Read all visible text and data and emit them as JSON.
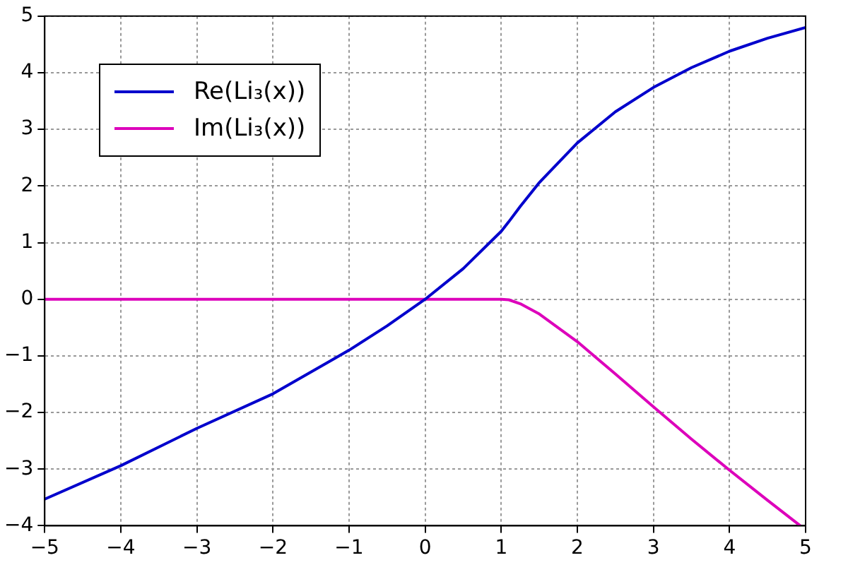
{
  "chart_data": {
    "type": "line",
    "x": [
      -5,
      -4,
      -3,
      -2,
      -1,
      -0.5,
      0,
      0.5,
      1,
      1.1,
      1.25,
      1.5,
      2,
      2.5,
      3,
      3.5,
      4,
      4.5,
      5
    ],
    "series": [
      {
        "name": "Re(Li₃(x))",
        "color": "#0000cc",
        "values": [
          -3.53,
          -2.94,
          -2.28,
          -1.67,
          -0.9,
          -0.47,
          0,
          0.54,
          1.2,
          1.37,
          1.64,
          2.06,
          2.76,
          3.31,
          3.74,
          4.09,
          4.38,
          4.61,
          4.8
        ]
      },
      {
        "name": "Im(Li₃(x))",
        "color": "#dd00bb",
        "x": [
          -5,
          -4,
          -3,
          -2,
          -1,
          0,
          1,
          1.1,
          1.25,
          1.5,
          2,
          2.5,
          3,
          3.5,
          4,
          4.5,
          4.93
        ],
        "values": [
          0,
          0,
          0,
          0,
          0,
          0,
          0,
          -0.01,
          -0.08,
          -0.26,
          -0.75,
          -1.32,
          -1.9,
          -2.47,
          -3.02,
          -3.55,
          -4
        ]
      }
    ],
    "xlim": [
      -5,
      5
    ],
    "xticks": [
      {
        "value": -5,
        "label": "−5"
      },
      {
        "value": -4,
        "label": "−4"
      },
      {
        "value": -3,
        "label": "−3"
      },
      {
        "value": -2,
        "label": "−2"
      },
      {
        "value": -1,
        "label": "−1"
      },
      0,
      1,
      2,
      3,
      4,
      5
    ],
    "ylim": [
      -4,
      5
    ],
    "yticks": [
      {
        "value": -4,
        "label": "−4"
      },
      {
        "value": -3,
        "label": "−3"
      },
      {
        "value": -2,
        "label": "−2"
      },
      {
        "value": -1,
        "label": "−1"
      },
      0,
      1,
      2,
      3,
      4,
      5
    ],
    "grid": true,
    "legend": "top left",
    "line_style": "solid",
    "marker": "none"
  }
}
